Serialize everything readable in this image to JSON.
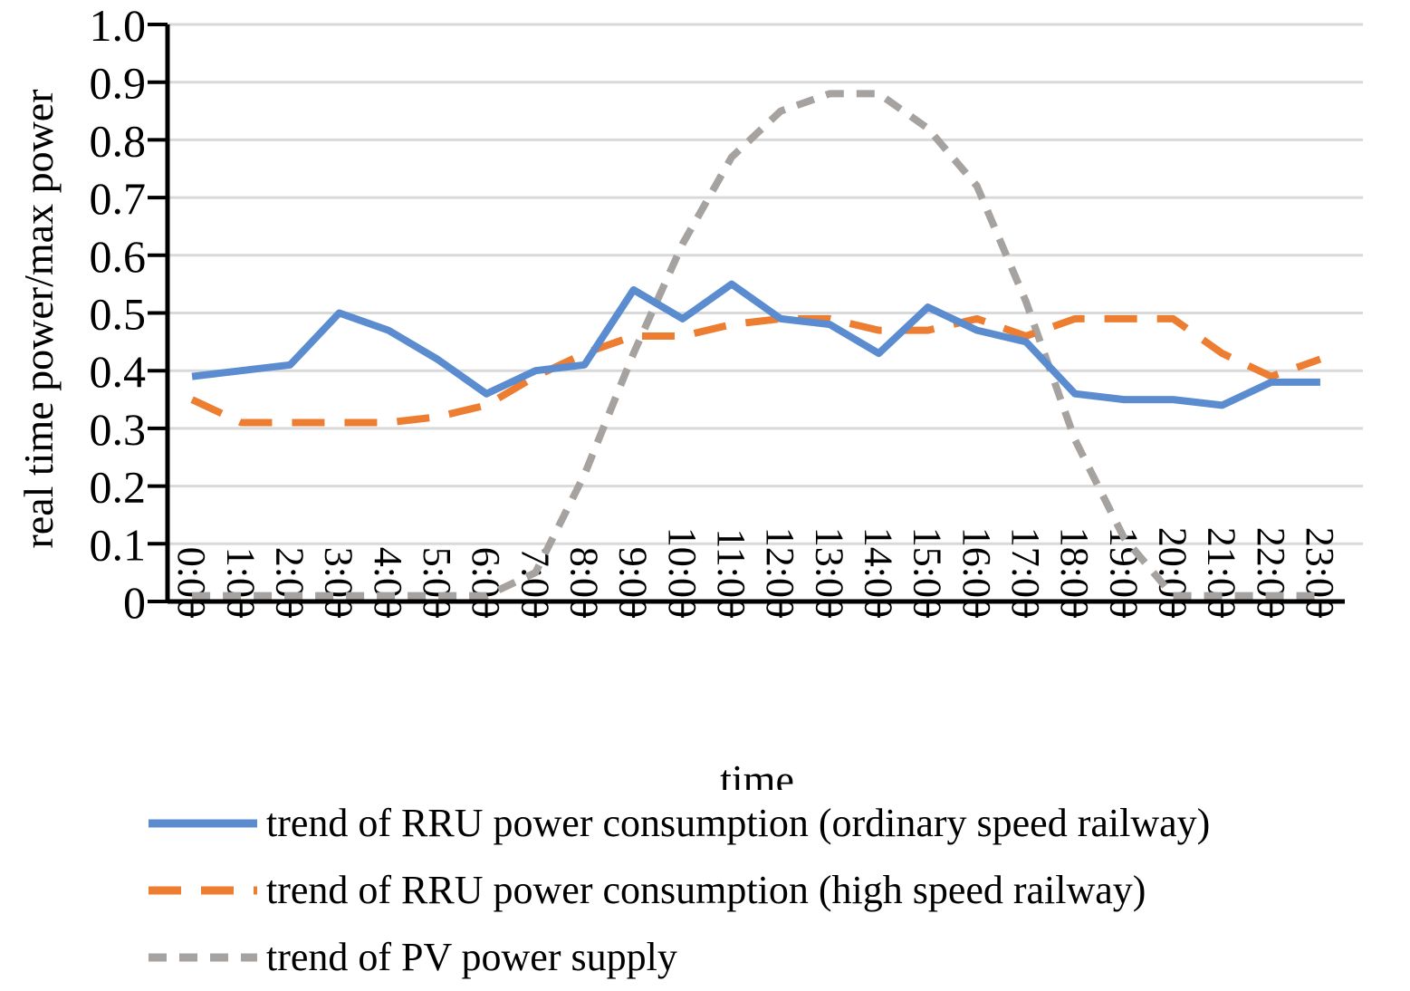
{
  "chart_data": {
    "type": "line",
    "title": "",
    "xlabel": "time",
    "ylabel": "real time power/max power",
    "ylim": [
      0,
      1.0
    ],
    "yticks": [
      "0",
      "0.1",
      "0.2",
      "0.3",
      "0.4",
      "0.5",
      "0.6",
      "0.7",
      "0.8",
      "0.9",
      "1.0"
    ],
    "grid": true,
    "legend_position": "bottom",
    "categories": [
      "0:00",
      "1:00",
      "2:00",
      "3:00",
      "4:00",
      "5:00",
      "6:00",
      "7:00",
      "8:00",
      "9:00",
      "10:00",
      "11:00",
      "12:00",
      "13:00",
      "14:00",
      "15:00",
      "16:00",
      "17:00",
      "18:00",
      "19:00",
      "20:00",
      "21:00",
      "22:00",
      "23:00"
    ],
    "series": [
      {
        "name": "trend of RRU power consumption (ordinary speed railway)",
        "color": "#5b8ccf",
        "style": "solid",
        "values": [
          0.39,
          0.4,
          0.41,
          0.5,
          0.47,
          0.42,
          0.36,
          0.4,
          0.41,
          0.54,
          0.49,
          0.55,
          0.49,
          0.48,
          0.43,
          0.51,
          0.47,
          0.45,
          0.36,
          0.35,
          0.35,
          0.34,
          0.38,
          0.38
        ]
      },
      {
        "name": "trend of RRU power consumption (high speed railway)",
        "color": "#ed7d31",
        "style": "dashed",
        "values": [
          0.35,
          0.31,
          0.31,
          0.31,
          0.31,
          0.32,
          0.34,
          0.39,
          0.43,
          0.46,
          0.46,
          0.48,
          0.49,
          0.49,
          0.47,
          0.47,
          0.49,
          0.46,
          0.49,
          0.49,
          0.49,
          0.43,
          0.39,
          0.42
        ]
      },
      {
        "name": "trend of PV power supply",
        "color": "#a5a2a0",
        "style": "dotted",
        "values": [
          0.01,
          0.01,
          0.01,
          0.01,
          0.01,
          0.01,
          0.01,
          0.05,
          0.22,
          0.43,
          0.62,
          0.77,
          0.85,
          0.88,
          0.88,
          0.82,
          0.72,
          0.52,
          0.28,
          0.11,
          0.01,
          0.01,
          0.01,
          0.01
        ]
      }
    ]
  }
}
